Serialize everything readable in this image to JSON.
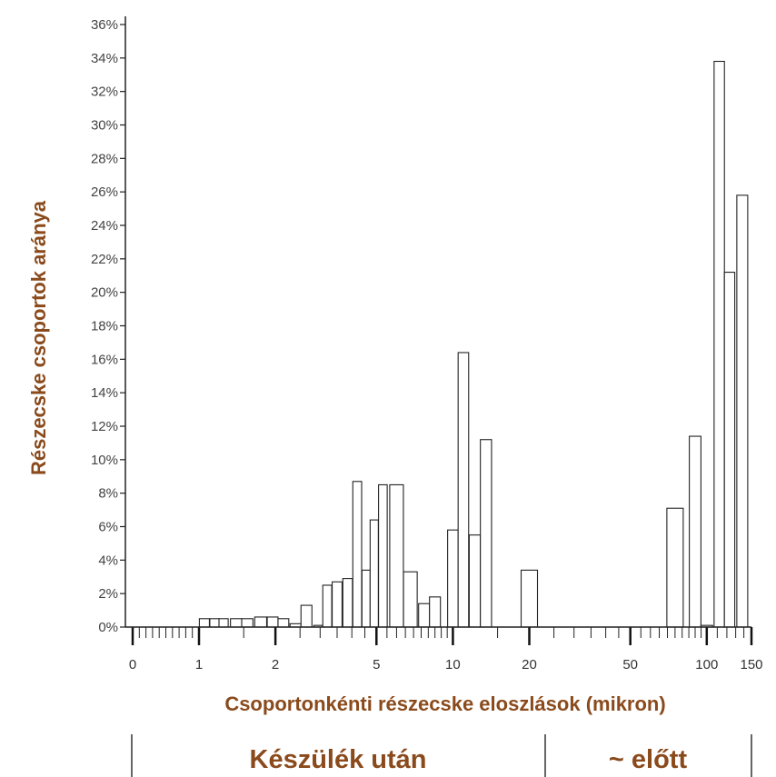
{
  "chart_data": {
    "type": "bar",
    "ylabel": "Részecske csoportok aránya",
    "xlabel": "Csoportonkénti részecske eloszlások (mikron)",
    "ylim": [
      0,
      36
    ],
    "y_ticks": [
      "0%",
      "2%",
      "4%",
      "6%",
      "8%",
      "10%",
      "12%",
      "14%",
      "16%",
      "18%",
      "20%",
      "22%",
      "24%",
      "26%",
      "28%",
      "30%",
      "32%",
      "34%",
      "36%"
    ],
    "x_ticks": [
      "0",
      "1",
      "2",
      "5",
      "10",
      "20",
      "50",
      "100",
      "150"
    ],
    "x_scale": "log",
    "grid": false,
    "legend": "none",
    "bars": [
      {
        "x": 1.05,
        "value": 0.5
      },
      {
        "x": 1.15,
        "value": 0.5
      },
      {
        "x": 1.25,
        "value": 0.5
      },
      {
        "x": 1.4,
        "value": 0.5
      },
      {
        "x": 1.55,
        "value": 0.5
      },
      {
        "x": 1.75,
        "value": 0.6
      },
      {
        "x": 1.95,
        "value": 0.6
      },
      {
        "x": 2.15,
        "value": 0.5
      },
      {
        "x": 2.4,
        "value": 0.2
      },
      {
        "x": 2.65,
        "value": 1.3
      },
      {
        "x": 2.95,
        "value": 0.1
      },
      {
        "x": 3.2,
        "value": 2.5
      },
      {
        "x": 3.5,
        "value": 2.7
      },
      {
        "x": 3.85,
        "value": 2.9
      },
      {
        "x": 4.2,
        "value": 8.7
      },
      {
        "x": 4.55,
        "value": 3.4
      },
      {
        "x": 4.9,
        "value": 6.4
      },
      {
        "x": 5.3,
        "value": 8.5
      },
      {
        "x": 6.0,
        "value": 8.5
      },
      {
        "x": 6.8,
        "value": 3.3
      },
      {
        "x": 7.7,
        "value": 1.4
      },
      {
        "x": 8.5,
        "value": 1.8
      },
      {
        "x": 10.0,
        "value": 5.8
      },
      {
        "x": 11.0,
        "value": 16.4
      },
      {
        "x": 12.2,
        "value": 5.5
      },
      {
        "x": 13.5,
        "value": 11.2
      },
      {
        "x": 20.0,
        "value": 3.4
      },
      {
        "x": 75.0,
        "value": 7.1
      },
      {
        "x": 90.0,
        "value": 11.4
      },
      {
        "x": 100.0,
        "value": 0.1
      },
      {
        "x": 112.0,
        "value": 33.8
      },
      {
        "x": 123.0,
        "value": 21.2
      },
      {
        "x": 138.0,
        "value": 25.8
      }
    ]
  },
  "footer": {
    "left_label": "Készülék után",
    "right_label": "~ előtt"
  }
}
